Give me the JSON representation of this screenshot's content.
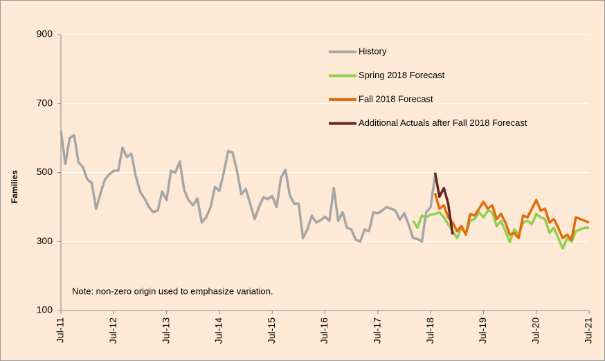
{
  "chart_data": {
    "type": "line",
    "y_label": "Families",
    "note": "Note: non-zero origin used to emphasize variation.",
    "categories": [
      "Jul-11",
      null,
      null,
      null,
      null,
      null,
      null,
      null,
      null,
      null,
      null,
      null,
      "Jul-12",
      null,
      null,
      null,
      null,
      null,
      null,
      null,
      null,
      null,
      null,
      null,
      "Jul-13",
      null,
      null,
      null,
      null,
      null,
      null,
      null,
      null,
      null,
      null,
      null,
      "Jul-14",
      null,
      null,
      null,
      null,
      null,
      null,
      null,
      null,
      null,
      null,
      null,
      "Jul-15",
      null,
      null,
      null,
      null,
      null,
      null,
      null,
      null,
      null,
      null,
      null,
      "Jul-16",
      null,
      null,
      null,
      null,
      null,
      null,
      null,
      null,
      null,
      null,
      null,
      "Jul-17",
      null,
      null,
      null,
      null,
      null,
      null,
      null,
      null,
      null,
      null,
      null,
      "Jul-18",
      null,
      null,
      null,
      null,
      null,
      null,
      null,
      null,
      null,
      null,
      null,
      "Jul-19",
      null,
      null,
      null,
      null,
      null,
      null,
      null,
      null,
      null,
      null,
      null,
      "Jul-20",
      null,
      null,
      null,
      null,
      null,
      null,
      null,
      null,
      null,
      null,
      null,
      "Jul-21"
    ],
    "series": [
      {
        "name": "History",
        "color": "#a6a6a6",
        "values": [
          620,
          525,
          600,
          608,
          530,
          515,
          480,
          470,
          395,
          440,
          480,
          495,
          505,
          505,
          572,
          545,
          555,
          490,
          445,
          425,
          400,
          385,
          390,
          445,
          420,
          505,
          500,
          532,
          450,
          420,
          405,
          425,
          355,
          370,
          400,
          458,
          447,
          500,
          562,
          558,
          505,
          437,
          452,
          410,
          365,
          400,
          428,
          423,
          432,
          400,
          485,
          508,
          435,
          410,
          410,
          310,
          335,
          375,
          355,
          362,
          372,
          360,
          455,
          360,
          385,
          340,
          335,
          305,
          300,
          335,
          330,
          385,
          382,
          390,
          400,
          395,
          390,
          363,
          382,
          350,
          310,
          308,
          300,
          385,
          400,
          490,
          null,
          null,
          null,
          null,
          null,
          null,
          null,
          null,
          null,
          null,
          null,
          null,
          null,
          null,
          null,
          null,
          null,
          null,
          null,
          null,
          null,
          null,
          null,
          null,
          null,
          null,
          null,
          null,
          null,
          null,
          null,
          null,
          null,
          null,
          null
        ]
      },
      {
        "name": "Spring 2018 Forecast",
        "color": "#92d050",
        "values": [
          null,
          null,
          null,
          null,
          null,
          null,
          null,
          null,
          null,
          null,
          null,
          null,
          null,
          null,
          null,
          null,
          null,
          null,
          null,
          null,
          null,
          null,
          null,
          null,
          null,
          null,
          null,
          null,
          null,
          null,
          null,
          null,
          null,
          null,
          null,
          null,
          null,
          null,
          null,
          null,
          null,
          null,
          null,
          null,
          null,
          null,
          null,
          null,
          null,
          null,
          null,
          null,
          null,
          null,
          null,
          null,
          null,
          null,
          null,
          null,
          null,
          null,
          null,
          null,
          null,
          null,
          null,
          null,
          null,
          null,
          null,
          null,
          null,
          null,
          null,
          null,
          null,
          null,
          null,
          null,
          360,
          340,
          375,
          370,
          378,
          380,
          385,
          370,
          350,
          330,
          310,
          340,
          325,
          360,
          365,
          385,
          370,
          390,
          385,
          345,
          360,
          330,
          298,
          335,
          320,
          355,
          360,
          350,
          380,
          370,
          365,
          325,
          340,
          310,
          280,
          310,
          300,
          330,
          335,
          340,
          340
        ]
      },
      {
        "name": "Fall 2018 Forecast",
        "color": "#e36c0a",
        "values": [
          null,
          null,
          null,
          null,
          null,
          null,
          null,
          null,
          null,
          null,
          null,
          null,
          null,
          null,
          null,
          null,
          null,
          null,
          null,
          null,
          null,
          null,
          null,
          null,
          null,
          null,
          null,
          null,
          null,
          null,
          null,
          null,
          null,
          null,
          null,
          null,
          null,
          null,
          null,
          null,
          null,
          null,
          null,
          null,
          null,
          null,
          null,
          null,
          null,
          null,
          null,
          null,
          null,
          null,
          null,
          null,
          null,
          null,
          null,
          null,
          null,
          null,
          null,
          null,
          null,
          null,
          null,
          null,
          null,
          null,
          null,
          null,
          null,
          null,
          null,
          null,
          null,
          null,
          null,
          null,
          null,
          null,
          null,
          null,
          null,
          440,
          395,
          405,
          370,
          355,
          330,
          345,
          320,
          380,
          375,
          395,
          415,
          395,
          405,
          365,
          380,
          355,
          320,
          325,
          310,
          375,
          370,
          395,
          420,
          390,
          395,
          355,
          365,
          340,
          310,
          320,
          305,
          370,
          365,
          360,
          355
        ]
      },
      {
        "name": "Additional Actuals after Fall 2018 Forecast",
        "color": "#632523",
        "values": [
          null,
          null,
          null,
          null,
          null,
          null,
          null,
          null,
          null,
          null,
          null,
          null,
          null,
          null,
          null,
          null,
          null,
          null,
          null,
          null,
          null,
          null,
          null,
          null,
          null,
          null,
          null,
          null,
          null,
          null,
          null,
          null,
          null,
          null,
          null,
          null,
          null,
          null,
          null,
          null,
          null,
          null,
          null,
          null,
          null,
          null,
          null,
          null,
          null,
          null,
          null,
          null,
          null,
          null,
          null,
          null,
          null,
          null,
          null,
          null,
          null,
          null,
          null,
          null,
          null,
          null,
          null,
          null,
          null,
          null,
          null,
          null,
          null,
          null,
          null,
          null,
          null,
          null,
          null,
          null,
          null,
          null,
          null,
          null,
          null,
          500,
          430,
          455,
          410,
          320,
          null,
          null,
          null,
          null,
          null,
          null,
          null,
          null,
          null,
          null,
          null,
          null,
          null,
          null,
          null,
          null,
          null,
          null,
          null,
          null,
          null,
          null,
          null,
          null,
          null,
          null,
          null,
          null,
          null,
          null,
          null
        ]
      }
    ],
    "ylim": [
      100,
      900
    ],
    "yticks": [
      100,
      300,
      500,
      700,
      900
    ],
    "grid": true,
    "legend": "upper right"
  }
}
